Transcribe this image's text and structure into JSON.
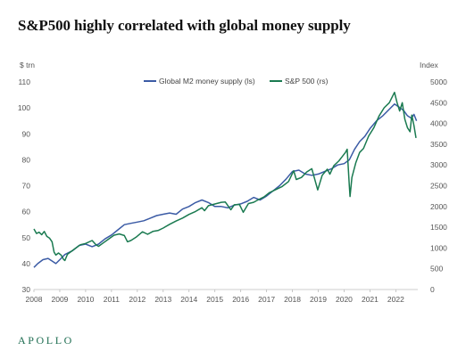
{
  "title": "S&P500 highly correlated with global money supply",
  "brand": {
    "name": "APOLLO",
    "color": "#1f6e52"
  },
  "chart_data": {
    "type": "line",
    "left_axis": {
      "unit_label": "$ trn",
      "ylim": [
        30,
        110
      ],
      "ticks": [
        "30",
        "40",
        "50",
        "60",
        "70",
        "80",
        "90",
        "100",
        "110"
      ]
    },
    "right_axis": {
      "unit_label": "Index",
      "ylim": [
        0,
        5000
      ],
      "ticks": [
        "0",
        "500",
        "1000",
        "1500",
        "2000",
        "2500",
        "3000",
        "3500",
        "4000",
        "4500",
        "5000"
      ]
    },
    "x_axis": {
      "xlim": [
        2008,
        2022.85
      ],
      "ticks": [
        "2008",
        "2009",
        "2010",
        "2011",
        "2012",
        "2013",
        "2014",
        "2015",
        "2016",
        "2017",
        "2018",
        "2019",
        "2020",
        "2021",
        "2022"
      ]
    },
    "grid": false,
    "legend_position": "top-center",
    "series": [
      {
        "name": "Global M2 money supply (ls)",
        "axis": "left",
        "color": "#3b5ba5",
        "points": [
          [
            2008.0,
            38.5
          ],
          [
            2008.15,
            40.0
          ],
          [
            2008.35,
            41.5
          ],
          [
            2008.55,
            42.0
          ],
          [
            2008.7,
            41.0
          ],
          [
            2008.85,
            40.0
          ],
          [
            2009.0,
            41.5
          ],
          [
            2009.2,
            43.5
          ],
          [
            2009.5,
            45.0
          ],
          [
            2009.75,
            47.0
          ],
          [
            2010.0,
            47.5
          ],
          [
            2010.25,
            46.5
          ],
          [
            2010.5,
            47.5
          ],
          [
            2010.75,
            49.5
          ],
          [
            2011.0,
            51.0
          ],
          [
            2011.25,
            53.0
          ],
          [
            2011.5,
            55.0
          ],
          [
            2011.75,
            55.5
          ],
          [
            2012.0,
            56.0
          ],
          [
            2012.25,
            56.5
          ],
          [
            2012.5,
            57.5
          ],
          [
            2012.75,
            58.5
          ],
          [
            2013.0,
            59.0
          ],
          [
            2013.25,
            59.5
          ],
          [
            2013.5,
            59.0
          ],
          [
            2013.75,
            61.0
          ],
          [
            2014.0,
            62.0
          ],
          [
            2014.25,
            63.5
          ],
          [
            2014.5,
            64.5
          ],
          [
            2014.75,
            63.5
          ],
          [
            2015.0,
            62.0
          ],
          [
            2015.25,
            62.0
          ],
          [
            2015.5,
            61.5
          ],
          [
            2015.75,
            62.5
          ],
          [
            2016.0,
            63.0
          ],
          [
            2016.25,
            64.0
          ],
          [
            2016.5,
            65.5
          ],
          [
            2016.75,
            64.5
          ],
          [
            2017.0,
            66.0
          ],
          [
            2017.25,
            68.0
          ],
          [
            2017.5,
            70.0
          ],
          [
            2017.75,
            72.5
          ],
          [
            2018.0,
            75.5
          ],
          [
            2018.25,
            76.0
          ],
          [
            2018.5,
            74.5
          ],
          [
            2018.75,
            74.0
          ],
          [
            2019.0,
            74.5
          ],
          [
            2019.25,
            75.5
          ],
          [
            2019.5,
            76.5
          ],
          [
            2019.75,
            78.0
          ],
          [
            2020.0,
            78.5
          ],
          [
            2020.2,
            80.0
          ],
          [
            2020.4,
            84.0
          ],
          [
            2020.6,
            87.0
          ],
          [
            2020.8,
            89.0
          ],
          [
            2021.0,
            92.0
          ],
          [
            2021.25,
            95.0
          ],
          [
            2021.5,
            97.0
          ],
          [
            2021.75,
            99.5
          ],
          [
            2021.95,
            101.5
          ],
          [
            2022.1,
            100.5
          ],
          [
            2022.3,
            99.0
          ],
          [
            2022.45,
            97.0
          ],
          [
            2022.6,
            96.0
          ],
          [
            2022.7,
            97.5
          ],
          [
            2022.8,
            95.0
          ]
        ]
      },
      {
        "name": "S&P 500 (rs)",
        "axis": "right",
        "color": "#1a7a50",
        "points": [
          [
            2008.0,
            1460
          ],
          [
            2008.1,
            1350
          ],
          [
            2008.2,
            1380
          ],
          [
            2008.3,
            1320
          ],
          [
            2008.4,
            1400
          ],
          [
            2008.5,
            1280
          ],
          [
            2008.6,
            1240
          ],
          [
            2008.7,
            1150
          ],
          [
            2008.78,
            900
          ],
          [
            2008.85,
            830
          ],
          [
            2008.95,
            880
          ],
          [
            2009.05,
            830
          ],
          [
            2009.15,
            720
          ],
          [
            2009.2,
            700
          ],
          [
            2009.3,
            850
          ],
          [
            2009.45,
            920
          ],
          [
            2009.6,
            990
          ],
          [
            2009.8,
            1080
          ],
          [
            2010.0,
            1110
          ],
          [
            2010.25,
            1180
          ],
          [
            2010.4,
            1080
          ],
          [
            2010.5,
            1040
          ],
          [
            2010.7,
            1130
          ],
          [
            2010.9,
            1220
          ],
          [
            2011.1,
            1310
          ],
          [
            2011.3,
            1340
          ],
          [
            2011.5,
            1300
          ],
          [
            2011.62,
            1150
          ],
          [
            2011.75,
            1180
          ],
          [
            2011.95,
            1260
          ],
          [
            2012.2,
            1390
          ],
          [
            2012.4,
            1330
          ],
          [
            2012.6,
            1400
          ],
          [
            2012.8,
            1420
          ],
          [
            2013.0,
            1480
          ],
          [
            2013.25,
            1570
          ],
          [
            2013.5,
            1650
          ],
          [
            2013.75,
            1720
          ],
          [
            2014.0,
            1810
          ],
          [
            2014.25,
            1880
          ],
          [
            2014.5,
            1970
          ],
          [
            2014.6,
            1900
          ],
          [
            2014.75,
            2020
          ],
          [
            2015.0,
            2060
          ],
          [
            2015.25,
            2100
          ],
          [
            2015.4,
            2110
          ],
          [
            2015.62,
            1920
          ],
          [
            2015.75,
            2040
          ],
          [
            2015.95,
            2050
          ],
          [
            2016.1,
            1860
          ],
          [
            2016.3,
            2070
          ],
          [
            2016.5,
            2100
          ],
          [
            2016.7,
            2170
          ],
          [
            2016.9,
            2230
          ],
          [
            2017.1,
            2330
          ],
          [
            2017.4,
            2420
          ],
          [
            2017.6,
            2480
          ],
          [
            2017.85,
            2600
          ],
          [
            2018.05,
            2860
          ],
          [
            2018.15,
            2650
          ],
          [
            2018.35,
            2700
          ],
          [
            2018.55,
            2830
          ],
          [
            2018.75,
            2910
          ],
          [
            2018.98,
            2400
          ],
          [
            2019.15,
            2750
          ],
          [
            2019.35,
            2900
          ],
          [
            2019.45,
            2780
          ],
          [
            2019.6,
            2980
          ],
          [
            2019.8,
            3100
          ],
          [
            2020.05,
            3300
          ],
          [
            2020.12,
            3380
          ],
          [
            2020.2,
            2500
          ],
          [
            2020.23,
            2240
          ],
          [
            2020.3,
            2700
          ],
          [
            2020.45,
            3050
          ],
          [
            2020.6,
            3300
          ],
          [
            2020.75,
            3400
          ],
          [
            2020.95,
            3700
          ],
          [
            2021.15,
            3900
          ],
          [
            2021.35,
            4180
          ],
          [
            2021.55,
            4380
          ],
          [
            2021.75,
            4500
          ],
          [
            2021.95,
            4750
          ],
          [
            2022.05,
            4500
          ],
          [
            2022.15,
            4300
          ],
          [
            2022.25,
            4500
          ],
          [
            2022.35,
            4100
          ],
          [
            2022.45,
            3900
          ],
          [
            2022.55,
            3800
          ],
          [
            2022.62,
            4200
          ],
          [
            2022.7,
            3950
          ],
          [
            2022.78,
            3650
          ]
        ]
      }
    ]
  }
}
